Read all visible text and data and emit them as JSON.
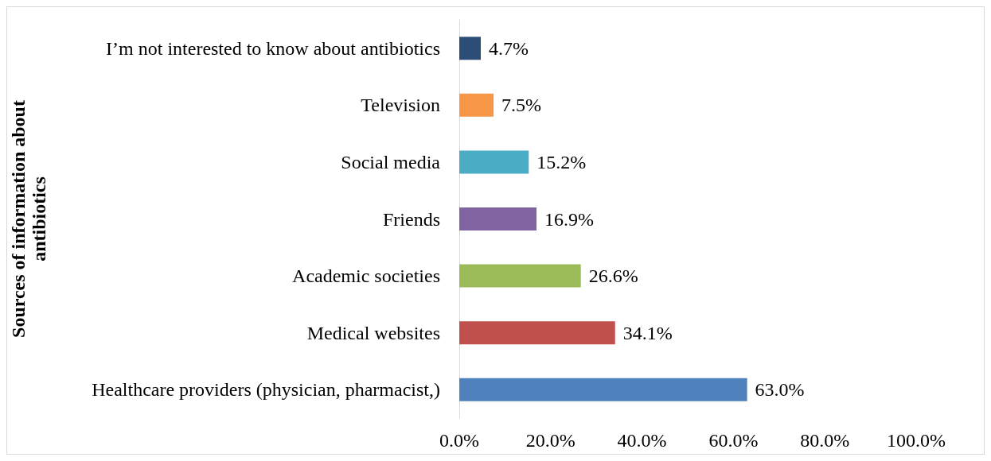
{
  "chart_data": {
    "type": "bar",
    "orientation": "horizontal",
    "ylabel": "Sources of information about antibiotics",
    "categories": [
      "I’m not interested to know about antibiotics",
      "Television",
      "Social media",
      "Friends",
      "Academic societies",
      "Medical websites",
      "Healthcare providers (physician, pharmacist,)"
    ],
    "values": [
      4.7,
      7.5,
      15.2,
      16.9,
      26.6,
      34.1,
      63.0
    ],
    "colors": [
      "#2c4d75",
      "#f79646",
      "#4bacc6",
      "#8064a2",
      "#9bbb59",
      "#c0504d",
      "#4f81bd"
    ],
    "value_labels": [
      "4.7%",
      "7.5%",
      "15.2%",
      "16.9%",
      "26.6%",
      "34.1%",
      "63.0%"
    ],
    "xlim": [
      0,
      100
    ],
    "xticks": [
      {
        "value": 0,
        "label": "0.0%"
      },
      {
        "value": 20,
        "label": "20.0%"
      },
      {
        "value": 40,
        "label": "40.0%"
      },
      {
        "value": 60,
        "label": "60.0%"
      },
      {
        "value": 80,
        "label": "80.0%"
      },
      {
        "value": 100,
        "label": "100.0%"
      }
    ],
    "grid": false
  }
}
